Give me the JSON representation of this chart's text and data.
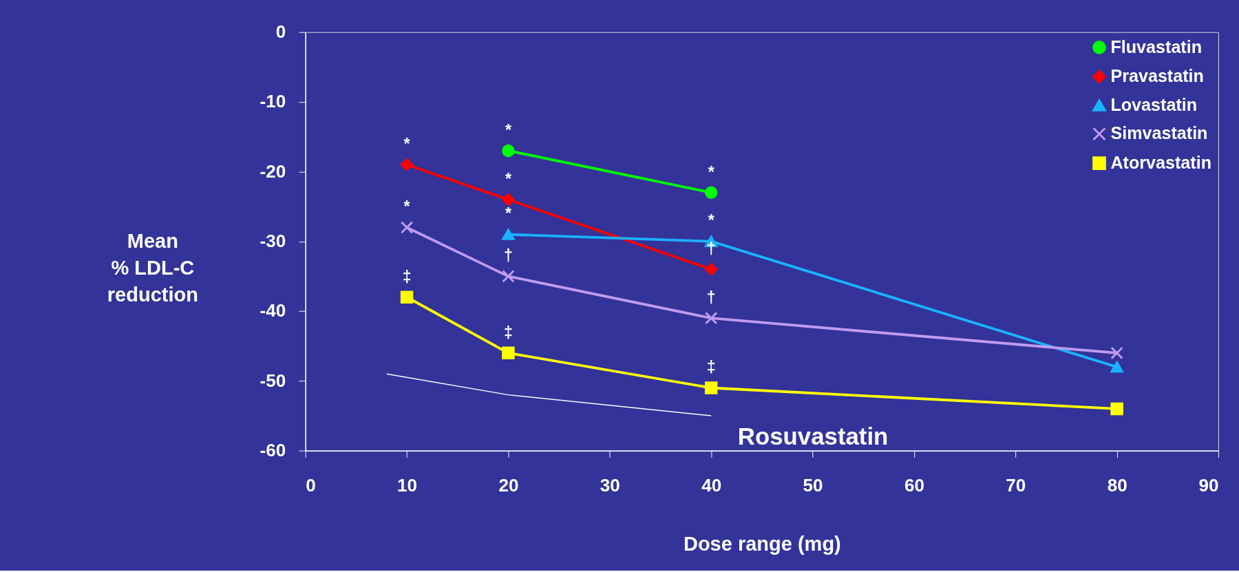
{
  "chart_data": {
    "type": "line",
    "xlabel": "Dose range (mg)",
    "ylabel": "Mean\n% LDL-C\nreduction",
    "xlim": [
      0,
      90
    ],
    "xticks": [
      0,
      10,
      20,
      30,
      40,
      50,
      60,
      70,
      80,
      90
    ],
    "ylim": [
      -60,
      0
    ],
    "yticks": [
      -60,
      -50,
      -40,
      -30,
      -20,
      -10,
      0
    ],
    "grid": false,
    "legend": "top right",
    "series": [
      {
        "name": "Fluvastatin",
        "color": "#00ff00",
        "marker": "circle",
        "x": [
          20,
          40
        ],
        "values": [
          -17,
          -23
        ]
      },
      {
        "name": "Pravastatin",
        "color": "#ff0000",
        "marker": "diamond",
        "x": [
          10,
          20,
          40
        ],
        "values": [
          -19,
          -24,
          -34
        ]
      },
      {
        "name": "Lovastatin",
        "color": "#1ab2ff",
        "marker": "triangle",
        "x": [
          20,
          40,
          80
        ],
        "values": [
          -29,
          -30,
          -48
        ]
      },
      {
        "name": "Simvastatin",
        "color": "#c09af0",
        "marker": "cross",
        "x": [
          10,
          20,
          40,
          80
        ],
        "values": [
          -28,
          -35,
          -41,
          -46
        ]
      },
      {
        "name": "Atorvastatin",
        "color": "#ffff00",
        "marker": "square",
        "x": [
          10,
          20,
          40,
          80
        ],
        "values": [
          -38,
          -46,
          -51,
          -54
        ]
      },
      {
        "name": "Rosuvastatin",
        "color": "#ffffff",
        "marker": "none",
        "x": [
          8,
          20,
          40
        ],
        "values": [
          -49,
          -52,
          -55
        ]
      }
    ],
    "annotations": [
      {
        "text": "*",
        "x": 10,
        "y": -19
      },
      {
        "text": "*",
        "x": 20,
        "y": -17
      },
      {
        "text": "*",
        "x": 40,
        "y": -23
      },
      {
        "text": "*",
        "x": 20,
        "y": -24
      },
      {
        "text": "†",
        "x": 40,
        "y": -34
      },
      {
        "text": "*",
        "x": 20,
        "y": -29
      },
      {
        "text": "*",
        "x": 40,
        "y": -30
      },
      {
        "text": "*",
        "x": 10,
        "y": -28
      },
      {
        "text": "†",
        "x": 20,
        "y": -35
      },
      {
        "text": "†",
        "x": 40,
        "y": -41
      },
      {
        "text": "‡",
        "x": 10,
        "y": -38
      },
      {
        "text": "‡",
        "x": 20,
        "y": -46
      },
      {
        "text": "‡",
        "x": 40,
        "y": -51
      }
    ]
  }
}
